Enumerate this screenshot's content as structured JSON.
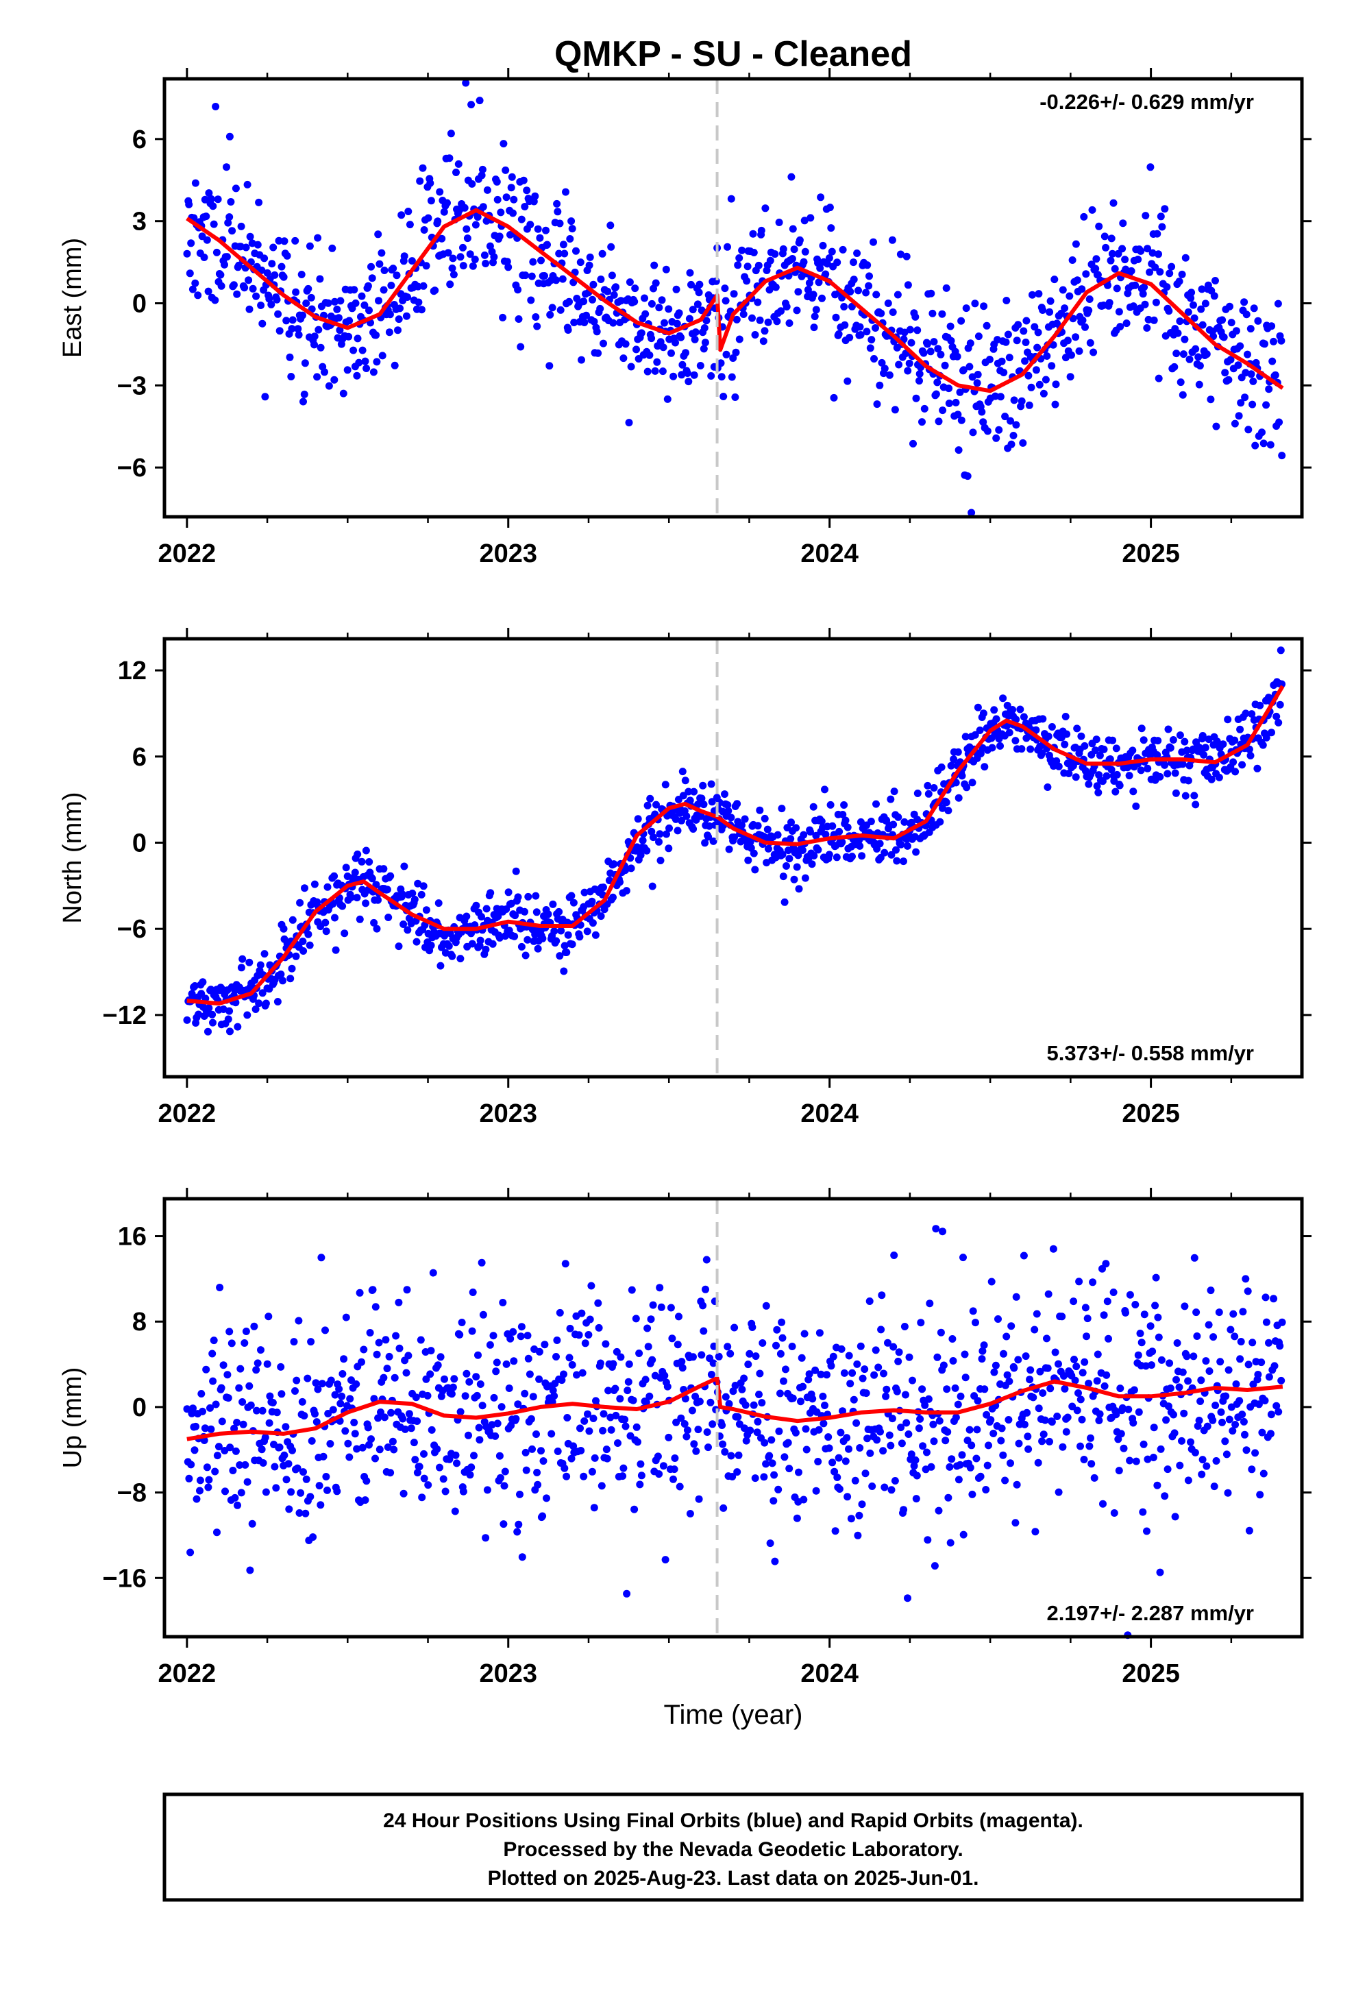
{
  "title": "QMKP  - SU - Cleaned",
  "xlabel": "Time (year)",
  "footer": {
    "line1": "24 Hour Positions Using Final Orbits (blue) and Rapid Orbits (magenta).",
    "line2": "Processed by the Nevada Geodetic Laboratory.",
    "line3": "Plotted on 2025-Aug-23. Last data on 2025-Jun-01."
  },
  "colors": {
    "points": "#0000ff",
    "model": "#ff0000",
    "break": "#c8c8c8",
    "axes": "#000000"
  },
  "chart_data": [
    {
      "type": "scatter",
      "ylabel": "East (mm)",
      "rate": "-0.226+/- 0.629 mm/yr",
      "rate_position": "top-right",
      "xlim": [
        2021.93,
        2025.47
      ],
      "ylim": [
        -7.8,
        8.2
      ],
      "yticks": [
        -6,
        -3,
        0,
        3,
        6
      ],
      "xticks": [
        2022,
        2023,
        2024,
        2025
      ],
      "break_year": 2023.65,
      "model_series": {
        "name": "model",
        "x": [
          2022.0,
          2022.1,
          2022.2,
          2022.3,
          2022.4,
          2022.5,
          2022.6,
          2022.7,
          2022.8,
          2022.9,
          2023.0,
          2023.1,
          2023.2,
          2023.3,
          2023.4,
          2023.5,
          2023.6,
          2023.65,
          2023.66,
          2023.7,
          2023.8,
          2023.9,
          2024.0,
          2024.1,
          2024.2,
          2024.3,
          2024.4,
          2024.5,
          2024.6,
          2024.7,
          2024.8,
          2024.9,
          2025.0,
          2025.1,
          2025.2,
          2025.3,
          2025.41
        ],
        "y": [
          3.1,
          2.3,
          1.3,
          0.3,
          -0.5,
          -0.9,
          -0.4,
          1.2,
          2.8,
          3.4,
          2.8,
          1.9,
          1.0,
          0.1,
          -0.7,
          -1.1,
          -0.6,
          0.3,
          -1.7,
          -0.4,
          0.8,
          1.3,
          0.8,
          -0.2,
          -1.2,
          -2.3,
          -3.0,
          -3.2,
          -2.6,
          -1.2,
          0.4,
          1.1,
          0.7,
          -0.4,
          -1.5,
          -2.2,
          -3.1
        ]
      },
      "points": {
        "n": 1150,
        "noise_sd": 1.35,
        "seed": 11
      }
    },
    {
      "type": "scatter",
      "ylabel": "North (mm)",
      "rate": "5.373+/- 0.558 mm/yr",
      "rate_position": "bottom-right",
      "xlim": [
        2021.93,
        2025.47
      ],
      "ylim": [
        -16.3,
        14.2
      ],
      "yticks": [
        -12,
        -6,
        0,
        6,
        12
      ],
      "xticks": [
        2022,
        2023,
        2024,
        2025
      ],
      "break_year": 2023.65,
      "model_series": {
        "name": "model",
        "x": [
          2022.0,
          2022.1,
          2022.2,
          2022.3,
          2022.4,
          2022.5,
          2022.55,
          2022.6,
          2022.7,
          2022.8,
          2022.9,
          2023.0,
          2023.1,
          2023.2,
          2023.3,
          2023.4,
          2023.5,
          2023.55,
          2023.6,
          2023.65,
          2023.7,
          2023.8,
          2023.9,
          2024.0,
          2024.1,
          2024.2,
          2024.3,
          2024.4,
          2024.5,
          2024.55,
          2024.6,
          2024.7,
          2024.8,
          2024.9,
          2025.0,
          2025.1,
          2025.2,
          2025.3,
          2025.41
        ],
        "y": [
          -11.0,
          -11.2,
          -10.5,
          -8.0,
          -4.8,
          -3.0,
          -2.7,
          -3.5,
          -5.0,
          -6.0,
          -6.0,
          -5.5,
          -5.8,
          -5.8,
          -4.0,
          0.5,
          2.4,
          2.7,
          2.2,
          1.8,
          1.0,
          0.0,
          -0.1,
          0.3,
          0.5,
          0.3,
          1.5,
          5.0,
          7.8,
          8.5,
          8.1,
          6.5,
          5.5,
          5.5,
          5.8,
          5.8,
          5.6,
          6.8,
          10.9
        ]
      },
      "points": {
        "n": 1150,
        "noise_sd": 1.05,
        "seed": 23
      }
    },
    {
      "type": "scatter",
      "ylabel": "Up (mm)",
      "rate": "2.197+/- 2.287 mm/yr",
      "rate_position": "bottom-right",
      "xlim": [
        2021.93,
        2025.47
      ],
      "ylim": [
        -21.5,
        19.5
      ],
      "yticks": [
        -16,
        -8,
        0,
        8,
        16
      ],
      "xticks": [
        2022,
        2023,
        2024,
        2025
      ],
      "break_year": 2023.65,
      "model_series": {
        "name": "model",
        "x": [
          2022.0,
          2022.1,
          2022.2,
          2022.3,
          2022.4,
          2022.5,
          2022.6,
          2022.7,
          2022.8,
          2022.9,
          2023.0,
          2023.1,
          2023.2,
          2023.3,
          2023.4,
          2023.5,
          2023.6,
          2023.65,
          2023.66,
          2023.7,
          2023.8,
          2023.9,
          2024.0,
          2024.1,
          2024.2,
          2024.3,
          2024.4,
          2024.5,
          2024.6,
          2024.7,
          2024.8,
          2024.9,
          2025.0,
          2025.1,
          2025.2,
          2025.3,
          2025.41
        ],
        "y": [
          -3.0,
          -2.5,
          -2.3,
          -2.5,
          -2.0,
          -0.5,
          0.5,
          0.3,
          -0.8,
          -1.0,
          -0.6,
          0.0,
          0.3,
          0.0,
          -0.2,
          0.5,
          2.0,
          2.7,
          0.0,
          -0.2,
          -0.9,
          -1.3,
          -1.0,
          -0.5,
          -0.3,
          -0.5,
          -0.5,
          0.3,
          1.5,
          2.4,
          1.8,
          1.0,
          1.0,
          1.3,
          1.8,
          1.6,
          1.9
        ]
      },
      "points": {
        "n": 1150,
        "noise_sd": 5.2,
        "seed": 37
      }
    }
  ]
}
